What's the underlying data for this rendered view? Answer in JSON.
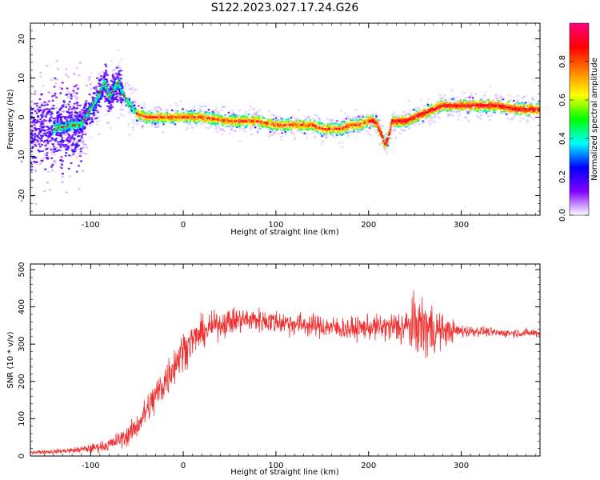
{
  "figure": {
    "title": "S122.2023.027.17.24.G26"
  },
  "chart_data": [
    {
      "type": "heatmap",
      "xlabel": "Height of straight line (km)",
      "ylabel": "Frequency (Hz)",
      "xlim": [
        -165,
        385
      ],
      "ylim": [
        -25,
        24
      ],
      "xticks": [
        -100,
        0,
        100,
        200,
        300
      ],
      "yticks": [
        20,
        10,
        0,
        -10,
        -20
      ],
      "colorbar": {
        "label": "Normalized spectral amplitude",
        "range": [
          0,
          1
        ],
        "ticks": [
          "0.0",
          "0.2",
          "0.4",
          "0.6",
          "0.8"
        ],
        "colormap": "rainbow",
        "colors": [
          "#ffffff",
          "#7f00ff",
          "#0000ff",
          "#00ffff",
          "#00ff00",
          "#ffff00",
          "#ff7f00",
          "#ff0000",
          "#ff0080"
        ]
      },
      "ridge": {
        "name": "",
        "x": [
          -160,
          -140,
          -120,
          -110,
          -100,
          -90,
          -85,
          -80,
          -75,
          -70,
          -65,
          -60,
          -50,
          -40,
          -20,
          0,
          20,
          50,
          80,
          100,
          120,
          140,
          150,
          160,
          170,
          180,
          190,
          200,
          205,
          210,
          215,
          218,
          222,
          225,
          230,
          240,
          250,
          260,
          270,
          280,
          300,
          320,
          340,
          360,
          385
        ],
        "y": [
          -3,
          -3,
          -2,
          -2,
          2,
          6,
          9,
          5,
          7,
          9,
          6,
          4,
          1,
          0,
          0,
          0,
          0,
          -1,
          -1,
          -2,
          -2,
          -2,
          -3,
          -3,
          -3,
          -2,
          -2,
          -1,
          -1,
          -2,
          -5,
          -7,
          -5,
          -1,
          -1,
          -1,
          0,
          1,
          2,
          3,
          3,
          3,
          3,
          2,
          2
        ]
      }
    },
    {
      "type": "line",
      "xlabel": "Height of straight line (km)",
      "ylabel": "SNR (10 * v/v)",
      "xlim": [
        -165,
        385
      ],
      "ylim": [
        0,
        515
      ],
      "xticks": [
        -100,
        0,
        100,
        200,
        300
      ],
      "yticks": [
        0,
        100,
        200,
        300,
        400,
        500
      ],
      "color": "#f03030",
      "series": [
        {
          "name": "",
          "x": [
            -165,
            -140,
            -120,
            -100,
            -80,
            -60,
            -50,
            -40,
            -30,
            -20,
            -10,
            0,
            10,
            20,
            30,
            40,
            50,
            60,
            80,
            100,
            120,
            140,
            160,
            180,
            200,
            220,
            240,
            250,
            260,
            270,
            280,
            300,
            320,
            340,
            360,
            385
          ],
          "y": [
            10,
            12,
            15,
            20,
            30,
            55,
            80,
            120,
            160,
            200,
            245,
            285,
            310,
            330,
            345,
            355,
            360,
            365,
            365,
            360,
            355,
            350,
            345,
            340,
            345,
            345,
            345,
            350,
            345,
            340,
            335,
            335,
            335,
            330,
            330,
            330
          ],
          "noise": [
            5,
            6,
            8,
            12,
            18,
            30,
            35,
            45,
            55,
            60,
            60,
            55,
            50,
            45,
            40,
            40,
            40,
            38,
            35,
            35,
            35,
            33,
            33,
            33,
            33,
            40,
            60,
            80,
            100,
            80,
            45,
            20,
            14,
            12,
            12,
            12
          ]
        }
      ]
    }
  ]
}
